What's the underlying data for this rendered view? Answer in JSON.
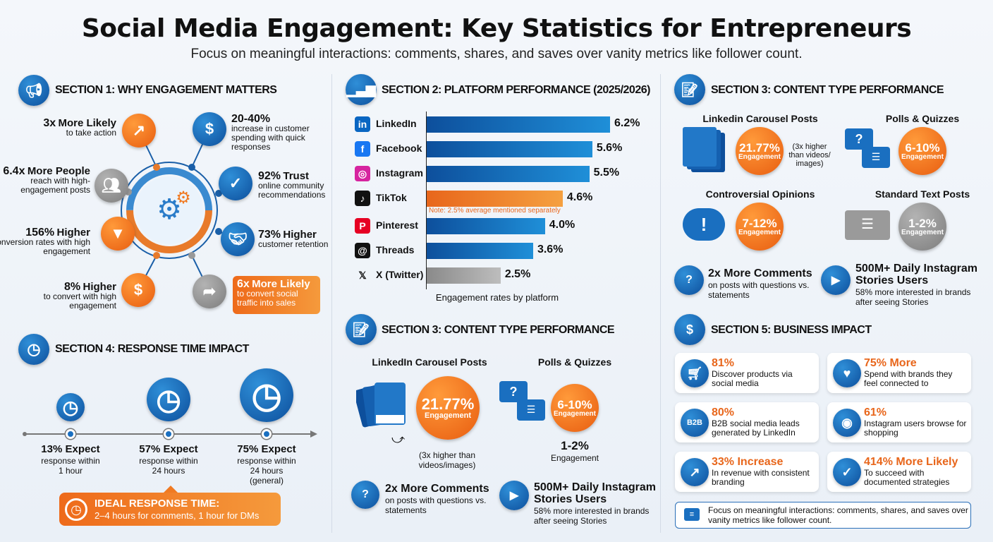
{
  "header": {
    "title": "Social Media Engagement: Key Statistics for Entrepreneurs",
    "subtitle": "Focus on meaningful interactions: comments, shares, and saves over vanity metrics like follower count."
  },
  "section1": {
    "title": "SECTION 1: WHY ENGAGEMENT MATTERS",
    "icon": "megaphone-icon",
    "items": [
      {
        "value": "3x",
        "label": "More Likely",
        "desc": "to take action",
        "icon": "arrow-up-right-icon",
        "color": "orange"
      },
      {
        "value": "20-40%",
        "label": "",
        "desc": "increase in customer spending with quick responses",
        "icon": "dollar-icon",
        "color": "blue"
      },
      {
        "value": "6.4x",
        "label": "More People",
        "desc": "reach with high-engagement posts",
        "icon": "people-icon",
        "color": "grey"
      },
      {
        "value": "92%",
        "label": "Trust",
        "desc": "online community recommendations",
        "icon": "shield-check-icon",
        "color": "blue"
      },
      {
        "value": "156%",
        "label": "Higher",
        "desc": "conversion rates with high engagement",
        "icon": "funnel-icon",
        "color": "orange"
      },
      {
        "value": "73%",
        "label": "Higher",
        "desc": "customer retention",
        "icon": "handshake-icon",
        "color": "blue"
      },
      {
        "value": "8%",
        "label": "Higher",
        "desc": "to convert with high engagement",
        "icon": "hand-coin-icon",
        "color": "orange"
      },
      {
        "value": "6x",
        "label": "More Likely",
        "desc": "to convert social traffic into sales",
        "icon": "share-arrow-icon",
        "color": "grey"
      }
    ]
  },
  "section2": {
    "title": "SECTION 2: PLATFORM PERFORMANCE (2025/2026)",
    "icon": "bar-chart-icon",
    "note": "Note: 2.5% average mentioned separately"
  },
  "chart_data": {
    "type": "bar",
    "orientation": "horizontal",
    "categories": [
      "LinkedIn",
      "Facebook",
      "Instagram",
      "TikTok",
      "Pinterest",
      "Threads",
      "X (Twitter)"
    ],
    "values": [
      6.2,
      5.6,
      5.5,
      4.6,
      4.0,
      3.6,
      2.5
    ],
    "value_labels": [
      "6.2%",
      "5.6%",
      "5.5%",
      "4.6%",
      "4.0%",
      "3.6%",
      "2.5%"
    ],
    "bar_colors": [
      "#1a6fc0",
      "#1a6fc0",
      "#1a6fc0",
      "#f07a22",
      "#1a6fc0",
      "#1a6fc0",
      "#9a9a9a"
    ],
    "xlabel": "Engagement rates by platform",
    "xlim": [
      0,
      6.2
    ]
  },
  "section3_mid": {
    "title": "SECTION 3: CONTENT TYPE PERFORMANCE",
    "carousel": {
      "title": "LinkedIn Carousel Posts",
      "value": "21.77%",
      "unit": "Engagement",
      "note": "(3x higher than videos/images)"
    },
    "polls": {
      "title": "Polls & Quizzes",
      "value": "6-10%",
      "unit": "Engagement"
    },
    "extra": {
      "value": "1-2%",
      "unit": "Engagement"
    },
    "comments": {
      "title": "2x More Comments",
      "desc": "on posts with questions vs. statements"
    },
    "stories": {
      "title": "500M+ Daily Instagram Stories Users",
      "desc": "58% more interested in brands after seeing Stories"
    }
  },
  "section3_right": {
    "title": "SECTION 3: CONTENT TYPE PERFORMANCE",
    "carousel": {
      "title": "Linkedin Carousel Posts",
      "value": "21.77%",
      "unit": "Engagement",
      "note": "(3x higher than videos/ images)"
    },
    "polls": {
      "title": "Polls & Quizzes",
      "value": "6-10%",
      "unit": "Engagement"
    },
    "controversial": {
      "title": "Controversial Opinions",
      "value": "7-12%",
      "unit": "Engagement"
    },
    "text_posts": {
      "title": "Standard Text Posts",
      "value": "1-2%",
      "unit": "Engagement"
    },
    "comments": {
      "title": "2x More Comments",
      "desc": "on posts with questions vs. statements"
    },
    "stories": {
      "title": "500M+ Daily Instagram Stories Users",
      "desc": "58% more interested in brands after seeing Stories"
    }
  },
  "section4": {
    "title": "SECTION 4: RESPONSE TIME IMPACT",
    "milestones": [
      {
        "value": "13% Expect",
        "desc": "response within 1 hour",
        "share": 13
      },
      {
        "value": "57% Expect",
        "desc": "response within 24 hours",
        "share": 57
      },
      {
        "value": "75% Expect",
        "desc": "response within 24 hours (general)",
        "share": 75
      }
    ],
    "ideal": {
      "title": "IDEAL RESPONSE TIME:",
      "desc": "2–4 hours for comments, 1 hour for DMs"
    }
  },
  "section5": {
    "title": "SECTION 5: BUSINESS IMPACT",
    "cards": [
      {
        "value": "81%",
        "desc": "Discover products via social media",
        "icon": "cart-icon"
      },
      {
        "value": "75% More",
        "desc": "Spend with brands they feel connected to",
        "icon": "heart-icon"
      },
      {
        "value": "80%",
        "desc": "B2B social media leads generated by LinkedIn",
        "icon": "b2b-icon"
      },
      {
        "value": "61%",
        "desc": "Instagram users browse for shopping",
        "icon": "eye-icon"
      },
      {
        "value": "33% Increase",
        "desc": "In revenue with consistent branding",
        "icon": "growth-hand-icon"
      },
      {
        "value": "414% More Likely",
        "desc": "To succeed with documented strategies",
        "icon": "document-check-icon"
      }
    ],
    "footer": "Focus on meaningful interactions: comments, shares, and saves over vanity metrics like follower count."
  },
  "colors": {
    "blue": "#1a6fc0",
    "orange": "#f07a22",
    "grey": "#9a9a9a"
  }
}
